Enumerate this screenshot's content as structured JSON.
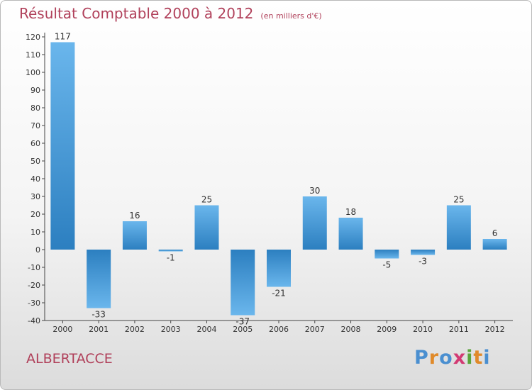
{
  "title": "Résultat Comptable 2000 à 2012",
  "subtitle": "(en milliers d'€)",
  "commune": "ALBERTACCE",
  "logo": [
    "P",
    "r",
    "o",
    "x",
    "i",
    "t",
    "i"
  ],
  "colors": {
    "title": "#b0405a",
    "bar_light": "#6ab6ec",
    "bar_dark": "#2c7fc0"
  },
  "chart_data": {
    "type": "bar",
    "title": "Résultat Comptable 2000 à 2012",
    "ylabel": "(en milliers d'€)",
    "xlabel": "",
    "categories": [
      "2000",
      "2001",
      "2002",
      "2003",
      "2004",
      "2005",
      "2006",
      "2007",
      "2008",
      "2009",
      "2010",
      "2011",
      "2012"
    ],
    "values": [
      117,
      -33,
      16,
      -1,
      25,
      -37,
      -21,
      30,
      18,
      -5,
      -3,
      25,
      6
    ],
    "ylim": [
      -40,
      120
    ],
    "yticks": [
      -40,
      -30,
      -20,
      -10,
      0,
      10,
      20,
      30,
      40,
      50,
      60,
      70,
      80,
      90,
      100,
      110,
      120
    ],
    "grid": false,
    "legend": "none"
  }
}
